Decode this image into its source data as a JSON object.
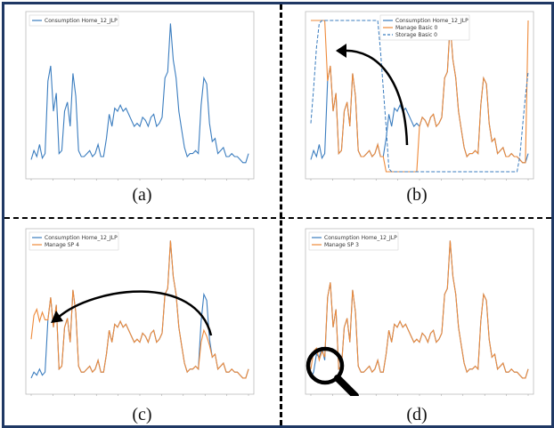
{
  "colors": {
    "blue": "#3b7dbf",
    "orange": "#ee8a3a",
    "frame": "#1f3864"
  },
  "chart_data": [
    {
      "type": "line",
      "panel": "a",
      "caption": "(a)",
      "legend": [
        "Consumption Home_12_JLP"
      ],
      "series": [
        {
          "name": "Consumption Home_12_JLP",
          "color": "blue",
          "values": [
            0.08,
            0.14,
            0.1,
            0.18,
            0.09,
            0.12,
            0.6,
            0.7,
            0.4,
            0.52,
            0.12,
            0.14,
            0.4,
            0.46,
            0.3,
            0.65,
            0.5,
            0.14,
            0.1,
            0.1,
            0.12,
            0.14,
            0.1,
            0.12,
            0.18,
            0.1,
            0.1,
            0.22,
            0.38,
            0.3,
            0.42,
            0.4,
            0.44,
            0.4,
            0.42,
            0.38,
            0.34,
            0.3,
            0.32,
            0.3,
            0.36,
            0.34,
            0.3,
            0.36,
            0.38,
            0.3,
            0.32,
            0.36,
            0.62,
            0.66,
            0.98,
            0.74,
            0.62,
            0.4,
            0.28,
            0.16,
            0.1,
            0.12,
            0.12,
            0.14,
            0.12,
            0.44,
            0.62,
            0.58,
            0.32,
            0.2,
            0.22,
            0.12,
            0.14,
            0.16,
            0.1,
            0.1,
            0.12,
            0.1,
            0.1,
            0.08,
            0.06,
            0.06,
            0.12
          ]
        }
      ]
    },
    {
      "type": "line",
      "panel": "b",
      "caption": "(b)",
      "legend": [
        "Consumption Home_12_JLP",
        "Manage Basic 0",
        "Storage Basic 0"
      ],
      "series": [
        {
          "name": "Consumption Home_12_JLP",
          "color": "blue",
          "values": [
            0.08,
            0.14,
            0.1,
            0.18,
            0.09,
            0.12,
            0.6,
            0.7,
            0.4,
            0.52,
            0.12,
            0.14,
            0.4,
            0.46,
            0.3,
            0.65,
            0.5,
            0.14,
            0.1,
            0.1,
            0.12,
            0.14,
            0.1,
            0.12,
            0.18,
            0.1,
            0.1,
            0.22,
            0.38,
            0.3,
            0.42,
            0.4,
            0.44,
            0.4,
            0.42,
            0.38,
            0.34,
            0.3,
            0.32,
            0.3,
            0.36,
            0.34,
            0.3,
            0.36,
            0.38,
            0.3,
            0.32,
            0.36,
            0.62,
            0.66,
            0.98,
            0.74,
            0.62,
            0.4,
            0.28,
            0.16,
            0.1,
            0.12,
            0.12,
            0.14,
            0.12,
            0.44,
            0.62,
            0.58,
            0.32,
            0.2,
            0.22,
            0.12,
            0.14,
            0.16,
            0.1,
            0.1,
            0.12,
            0.1,
            0.1,
            0.08,
            0.06,
            0.06,
            0.12
          ]
        },
        {
          "name": "Manage Basic 0",
          "color": "orange",
          "values": [
            1.0,
            1.0,
            1.0,
            1.0,
            1.0,
            1.0,
            0.6,
            0.7,
            0.4,
            0.52,
            0.12,
            0.14,
            0.4,
            0.46,
            0.3,
            0.65,
            0.5,
            0.14,
            0.1,
            0.1,
            0.12,
            0.14,
            0.1,
            0.12,
            0.18,
            0.1,
            0.1,
            0.0,
            0.0,
            0.0,
            0.0,
            0.0,
            0.0,
            0.0,
            0.0,
            0.0,
            0.0,
            0.0,
            0.0,
            0.3,
            0.36,
            0.34,
            0.3,
            0.36,
            0.38,
            0.3,
            0.32,
            0.36,
            0.62,
            0.66,
            0.98,
            0.74,
            0.62,
            0.4,
            0.28,
            0.16,
            0.1,
            0.12,
            0.12,
            0.14,
            0.12,
            0.44,
            0.62,
            0.58,
            0.32,
            0.2,
            0.22,
            0.12,
            0.14,
            0.16,
            0.1,
            0.1,
            0.12,
            0.1,
            0.1,
            0.08,
            0.06,
            0.06,
            1.0
          ]
        },
        {
          "name": "Storage Basic 0",
          "color": "blue",
          "dashed": true,
          "values": [
            0.32,
            0.55,
            0.82,
            0.98,
            1.0,
            1.0,
            1.0,
            1.0,
            1.0,
            1.0,
            1.0,
            1.0,
            1.0,
            1.0,
            1.0,
            1.0,
            1.0,
            1.0,
            1.0,
            1.0,
            1.0,
            1.0,
            1.0,
            1.0,
            1.0,
            0.8,
            0.55,
            0.3,
            0.02,
            0.0,
            0.0,
            0.0,
            0.0,
            0.0,
            0.0,
            0.0,
            0.0,
            0.0,
            0.0,
            0.0,
            0.0,
            0.0,
            0.0,
            0.0,
            0.0,
            0.0,
            0.0,
            0.0,
            0.0,
            0.0,
            0.0,
            0.0,
            0.0,
            0.0,
            0.0,
            0.0,
            0.0,
            0.0,
            0.0,
            0.0,
            0.0,
            0.0,
            0.0,
            0.0,
            0.0,
            0.0,
            0.0,
            0.0,
            0.0,
            0.0,
            0.0,
            0.0,
            0.0,
            0.0,
            0.0,
            0.1,
            0.3,
            0.5,
            0.66
          ]
        }
      ]
    },
    {
      "type": "line",
      "panel": "c",
      "caption": "(c)",
      "legend": [
        "Consumption Home_12_JLP",
        "Manage SP 4"
      ],
      "series": [
        {
          "name": "Consumption Home_12_JLP",
          "color": "blue",
          "values": [
            0.06,
            0.1,
            0.08,
            0.12,
            0.08,
            0.1,
            0.45,
            0.6,
            0.4,
            0.55,
            0.12,
            0.14,
            0.4,
            0.46,
            0.3,
            0.65,
            0.5,
            0.14,
            0.1,
            0.1,
            0.12,
            0.14,
            0.1,
            0.12,
            0.18,
            0.1,
            0.1,
            0.22,
            0.38,
            0.3,
            0.42,
            0.4,
            0.44,
            0.4,
            0.42,
            0.38,
            0.34,
            0.3,
            0.32,
            0.3,
            0.36,
            0.34,
            0.3,
            0.36,
            0.38,
            0.3,
            0.32,
            0.36,
            0.62,
            0.66,
            0.98,
            0.74,
            0.62,
            0.4,
            0.28,
            0.16,
            0.1,
            0.12,
            0.12,
            0.14,
            0.12,
            0.44,
            0.62,
            0.58,
            0.32,
            0.2,
            0.22,
            0.12,
            0.14,
            0.16,
            0.1,
            0.1,
            0.12,
            0.1,
            0.1,
            0.08,
            0.06,
            0.06,
            0.12
          ]
        },
        {
          "name": "Manage SP 4",
          "color": "orange",
          "values": [
            0.32,
            0.48,
            0.52,
            0.44,
            0.5,
            0.45,
            0.45,
            0.6,
            0.4,
            0.55,
            0.12,
            0.14,
            0.4,
            0.46,
            0.3,
            0.65,
            0.5,
            0.14,
            0.1,
            0.1,
            0.12,
            0.14,
            0.1,
            0.12,
            0.18,
            0.1,
            0.1,
            0.22,
            0.38,
            0.3,
            0.42,
            0.4,
            0.44,
            0.4,
            0.42,
            0.38,
            0.34,
            0.3,
            0.32,
            0.3,
            0.36,
            0.34,
            0.3,
            0.36,
            0.38,
            0.3,
            0.32,
            0.36,
            0.62,
            0.66,
            0.98,
            0.74,
            0.62,
            0.4,
            0.28,
            0.16,
            0.1,
            0.12,
            0.12,
            0.14,
            0.12,
            0.3,
            0.38,
            0.34,
            0.28,
            0.2,
            0.22,
            0.12,
            0.14,
            0.16,
            0.1,
            0.1,
            0.12,
            0.1,
            0.1,
            0.08,
            0.06,
            0.06,
            0.12
          ]
        }
      ]
    },
    {
      "type": "line",
      "panel": "d",
      "caption": "(d)",
      "legend": [
        "Consumption Home_12_JLP",
        "Manage SP 3"
      ],
      "series": [
        {
          "name": "Consumption Home_12_JLP",
          "color": "blue",
          "values": [
            0.06,
            0.1,
            0.22,
            0.2,
            0.26,
            0.18,
            0.6,
            0.7,
            0.4,
            0.52,
            0.12,
            0.14,
            0.4,
            0.46,
            0.3,
            0.65,
            0.5,
            0.14,
            0.1,
            0.1,
            0.12,
            0.14,
            0.1,
            0.12,
            0.18,
            0.1,
            0.1,
            0.22,
            0.38,
            0.3,
            0.42,
            0.4,
            0.44,
            0.4,
            0.42,
            0.38,
            0.34,
            0.3,
            0.32,
            0.3,
            0.36,
            0.34,
            0.3,
            0.36,
            0.38,
            0.3,
            0.32,
            0.36,
            0.62,
            0.66,
            0.98,
            0.74,
            0.62,
            0.4,
            0.28,
            0.16,
            0.1,
            0.12,
            0.12,
            0.14,
            0.12,
            0.44,
            0.62,
            0.58,
            0.32,
            0.2,
            0.22,
            0.12,
            0.14,
            0.16,
            0.1,
            0.1,
            0.12,
            0.1,
            0.1,
            0.08,
            0.06,
            0.06,
            0.12
          ]
        },
        {
          "name": "Manage SP 3",
          "color": "orange",
          "values": [
            0.12,
            0.24,
            0.26,
            0.18,
            0.24,
            0.2,
            0.6,
            0.7,
            0.4,
            0.52,
            0.12,
            0.14,
            0.4,
            0.46,
            0.3,
            0.65,
            0.5,
            0.14,
            0.1,
            0.1,
            0.12,
            0.14,
            0.1,
            0.12,
            0.18,
            0.1,
            0.1,
            0.22,
            0.38,
            0.3,
            0.42,
            0.4,
            0.44,
            0.4,
            0.42,
            0.38,
            0.34,
            0.3,
            0.32,
            0.3,
            0.36,
            0.34,
            0.3,
            0.36,
            0.38,
            0.3,
            0.32,
            0.36,
            0.62,
            0.66,
            0.98,
            0.74,
            0.62,
            0.4,
            0.28,
            0.16,
            0.1,
            0.12,
            0.12,
            0.14,
            0.12,
            0.44,
            0.62,
            0.58,
            0.32,
            0.2,
            0.22,
            0.12,
            0.14,
            0.16,
            0.1,
            0.1,
            0.12,
            0.1,
            0.1,
            0.08,
            0.06,
            0.06,
            0.12
          ]
        }
      ]
    }
  ]
}
